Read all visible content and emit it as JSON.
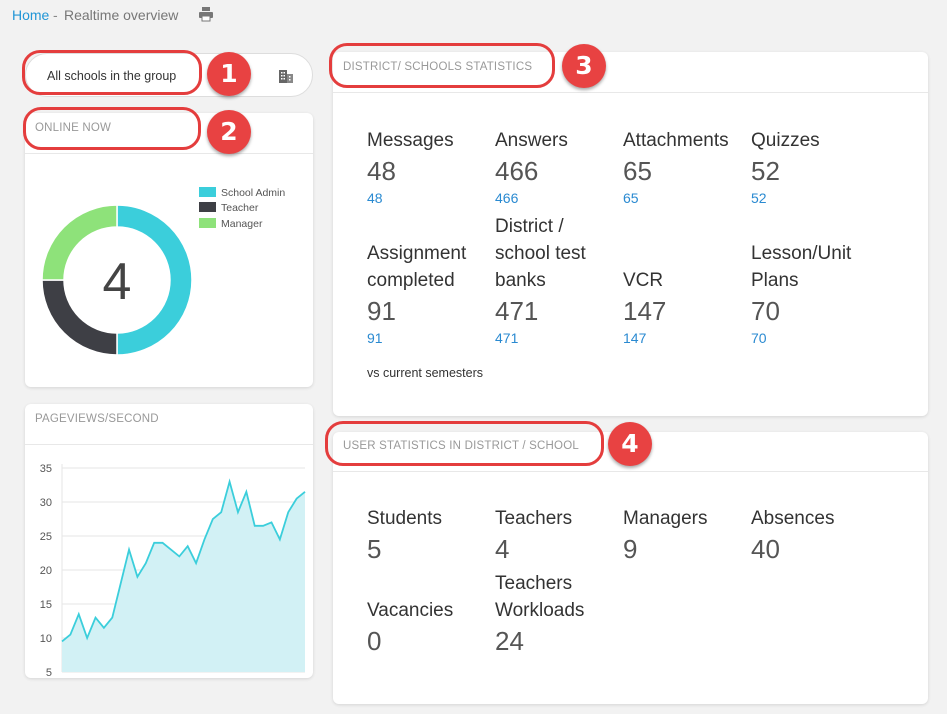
{
  "breadcrumb": {
    "home": "Home",
    "separator": "-",
    "current": "Realtime overview",
    "print_icon": "printer-icon"
  },
  "selector": {
    "value": "All schools in the group",
    "icon": "building-icon"
  },
  "online": {
    "title": "ONLINE NOW",
    "total": "4",
    "legend": [
      {
        "label": "School Admin",
        "color": "#3bcedb"
      },
      {
        "label": "Teacher",
        "color": "#3e3f45"
      },
      {
        "label": "Manager",
        "color": "#8ee27a"
      }
    ],
    "chart_data": {
      "type": "pie",
      "categories": [
        "School Admin",
        "Teacher",
        "Manager"
      ],
      "values": [
        2,
        1,
        1
      ]
    }
  },
  "pageviews": {
    "title": "PAGEVIEWS/SECOND",
    "chart_data": {
      "type": "area",
      "ylim": [
        5,
        35
      ],
      "yticks": [
        35,
        30,
        25,
        20,
        15,
        10,
        5
      ],
      "values": [
        9.5,
        10.5,
        13.5,
        10,
        13,
        11.5,
        13,
        18,
        23,
        19,
        21,
        24,
        24,
        23,
        22,
        23.5,
        21,
        24.5,
        27.5,
        28.5,
        33,
        28.5,
        31.5,
        26.5,
        26.5,
        27,
        24.5,
        28.5,
        30.5,
        31.5
      ]
    }
  },
  "district": {
    "title": "DISTRICT/ SCHOOLS STATISTICS",
    "row1": [
      {
        "label": "Messages",
        "value": "48",
        "sub": "48"
      },
      {
        "label": "Answers",
        "value": "466",
        "sub": "466"
      },
      {
        "label": "Attachments",
        "value": "65",
        "sub": "65"
      },
      {
        "label": "Quizzes",
        "value": "52",
        "sub": "52"
      }
    ],
    "row2": [
      {
        "label": "Assignment completed",
        "value": "91",
        "sub": "91"
      },
      {
        "label": "District / school test banks",
        "value": "471",
        "sub": "471"
      },
      {
        "label": "VCR",
        "value": "147",
        "sub": "147"
      },
      {
        "label": "Lesson/Unit Plans",
        "value": "70",
        "sub": "70"
      }
    ],
    "note": "vs current semesters"
  },
  "users": {
    "title": "USER STATISTICS IN DISTRICT / SCHOOL",
    "row1": [
      {
        "label": "Students",
        "value": "5"
      },
      {
        "label": "Teachers",
        "value": "4"
      },
      {
        "label": "Managers",
        "value": "9"
      },
      {
        "label": "Absences",
        "value": "40"
      }
    ],
    "row2": [
      {
        "label": "Vacancies",
        "value": "0"
      },
      {
        "label": "Teachers Workloads",
        "value": "24"
      }
    ]
  },
  "callouts": [
    "1",
    "2",
    "3",
    "4"
  ],
  "colors": {
    "accent_link": "#2196d6",
    "callout_red": "#e84242"
  }
}
